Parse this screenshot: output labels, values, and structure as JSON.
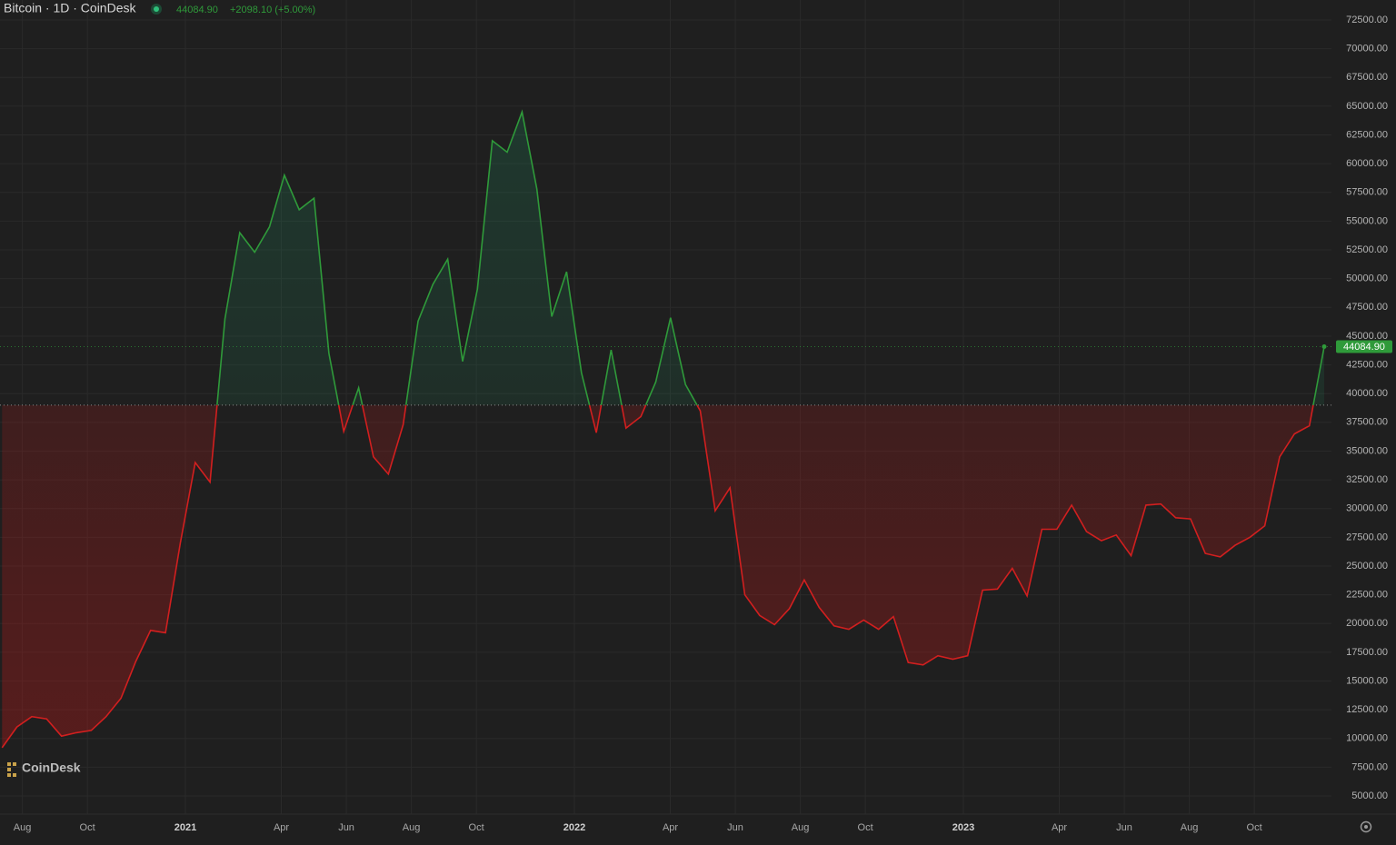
{
  "header": {
    "symbol": "Bitcoin · 1D · CoinDesk",
    "price": "44084.90",
    "change": "+2098.10 (+5.00%)"
  },
  "watermark": "CoinDesk",
  "chart_data": {
    "type": "baseline",
    "series": [
      {
        "name": "Bitcoin",
        "color_up": "#2f9a3a",
        "color_down": "#d21f1f",
        "values": [
          9200,
          11000,
          11900,
          11700,
          10200,
          10500,
          10700,
          11900,
          13500,
          16700,
          19400,
          19200,
          27000,
          34000,
          32300,
          46500,
          54000,
          52300,
          54500,
          59000,
          56000,
          57000,
          43500,
          36700,
          40500,
          34500,
          33000,
          37300,
          46300,
          49500,
          51700,
          42800,
          49100,
          62000,
          61000,
          64500,
          57800,
          46700,
          50600,
          41800,
          36600,
          43800,
          37000,
          38000,
          41000,
          46600,
          40800,
          38500,
          29800,
          31800,
          22500,
          20700,
          19900,
          21300,
          23800,
          21400,
          19800,
          19500,
          20300,
          19500,
          20600,
          16600,
          16400,
          17200,
          16900,
          17200,
          22900,
          23000,
          24800,
          22400,
          28200,
          28200,
          30300,
          28000,
          27200,
          27700,
          25900,
          30300,
          30400,
          29200,
          29100,
          26100,
          25800,
          26800,
          27500,
          28500,
          34500,
          36500,
          37200,
          44084.9
        ]
      }
    ],
    "baseline_value": 39000,
    "ylim": [
      3420,
      74240
    ],
    "yticks": [
      {
        "value": 5000,
        "label": "5000.00"
      },
      {
        "value": 7500,
        "label": "7500.00"
      },
      {
        "value": 10000,
        "label": "10000.00"
      },
      {
        "value": 12500,
        "label": "12500.00"
      },
      {
        "value": 15000,
        "label": "15000.00"
      },
      {
        "value": 17500,
        "label": "17500.00"
      },
      {
        "value": 20000,
        "label": "20000.00"
      },
      {
        "value": 22500,
        "label": "22500.00"
      },
      {
        "value": 25000,
        "label": "25000.00"
      },
      {
        "value": 27500,
        "label": "27500.00"
      },
      {
        "value": 30000,
        "label": "30000.00"
      },
      {
        "value": 32500,
        "label": "32500.00"
      },
      {
        "value": 35000,
        "label": "35000.00"
      },
      {
        "value": 37500,
        "label": "37500.00"
      },
      {
        "value": 40000,
        "label": "40000.00"
      },
      {
        "value": 42500,
        "label": "42500.00"
      },
      {
        "value": 45000,
        "label": "45000.00"
      },
      {
        "value": 47500,
        "label": "47500.00"
      },
      {
        "value": 50000,
        "label": "50000.00"
      },
      {
        "value": 52500,
        "label": "52500.00"
      },
      {
        "value": 55000,
        "label": "55000.00"
      },
      {
        "value": 57500,
        "label": "57500.00"
      },
      {
        "value": 60000,
        "label": "60000.00"
      },
      {
        "value": 62500,
        "label": "62500.00"
      },
      {
        "value": 65000,
        "label": "65000.00"
      },
      {
        "value": 67500,
        "label": "67500.00"
      },
      {
        "value": 70000,
        "label": "70000.00"
      },
      {
        "value": 72500,
        "label": "72500.00"
      }
    ],
    "xticks": [
      {
        "value": "2020-08",
        "label": "Aug"
      },
      {
        "value": "2020-10",
        "label": "Oct"
      },
      {
        "value": "2021-01",
        "label": "2021"
      },
      {
        "value": "2021-04",
        "label": "Apr"
      },
      {
        "value": "2021-06",
        "label": "Jun"
      },
      {
        "value": "2021-08",
        "label": "Aug"
      },
      {
        "value": "2021-10",
        "label": "Oct"
      },
      {
        "value": "2022-01",
        "label": "2022"
      },
      {
        "value": "2022-04",
        "label": "Apr"
      },
      {
        "value": "2022-06",
        "label": "Jun"
      },
      {
        "value": "2022-08",
        "label": "Aug"
      },
      {
        "value": "2022-10",
        "label": "Oct"
      },
      {
        "value": "2023-01",
        "label": "2023"
      },
      {
        "value": "2023-04",
        "label": "Apr"
      },
      {
        "value": "2023-06",
        "label": "Jun"
      },
      {
        "value": "2023-08",
        "label": "Aug"
      },
      {
        "value": "2023-10",
        "label": "Oct"
      }
    ],
    "grid": true
  }
}
